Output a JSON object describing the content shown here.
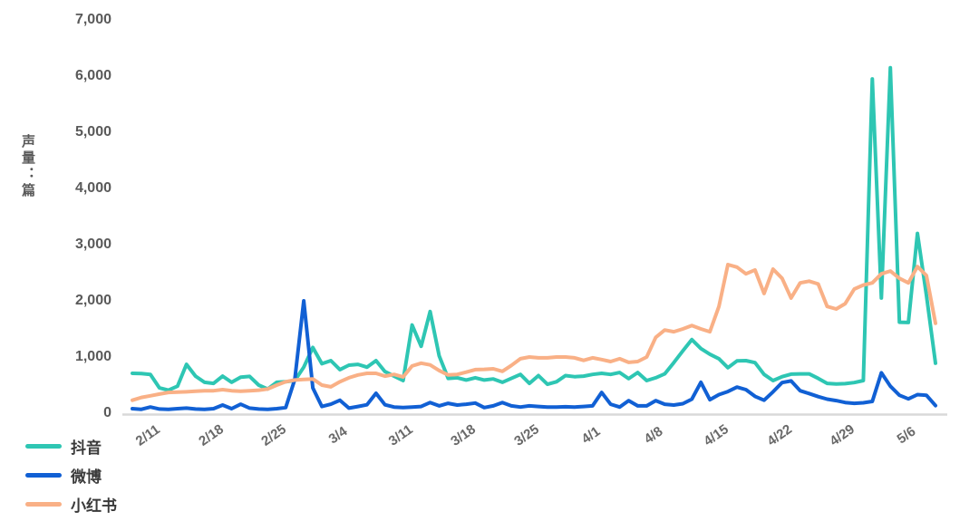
{
  "chart_data": {
    "type": "line",
    "title": "",
    "y_axis_title": "声量：篇",
    "xlabel": "",
    "ylabel": "声量：篇",
    "ylim": [
      0,
      7000
    ],
    "grid": false,
    "legend_position": "bottom-left",
    "axis_line_color": "#d9d9d9",
    "tick_label_color": "#595959",
    "legend_text_color": "#3a3a3a",
    "y_tick_labels": [
      "0",
      "1,000",
      "2,000",
      "3,000",
      "4,000",
      "5,000",
      "6,000",
      "7,000"
    ],
    "x_tick_labels": [
      "2/11",
      "2/18",
      "2/25",
      "3/4",
      "3/11",
      "3/18",
      "3/25",
      "4/1",
      "4/8",
      "4/15",
      "4/22",
      "4/29",
      "5/6"
    ],
    "x_tick_indices": [
      2,
      9,
      16,
      23,
      30,
      37,
      44,
      51,
      58,
      65,
      72,
      79,
      86
    ],
    "x": [
      "2/9",
      "2/10",
      "2/11",
      "2/12",
      "2/13",
      "2/14",
      "2/15",
      "2/16",
      "2/17",
      "2/18",
      "2/19",
      "2/20",
      "2/21",
      "2/22",
      "2/23",
      "2/24",
      "2/25",
      "2/26",
      "2/27",
      "2/28",
      "3/1",
      "3/2",
      "3/3",
      "3/4",
      "3/5",
      "3/6",
      "3/7",
      "3/8",
      "3/9",
      "3/10",
      "3/11",
      "3/12",
      "3/13",
      "3/14",
      "3/15",
      "3/16",
      "3/17",
      "3/18",
      "3/19",
      "3/20",
      "3/21",
      "3/22",
      "3/23",
      "3/24",
      "3/25",
      "3/26",
      "3/27",
      "3/28",
      "3/29",
      "3/30",
      "3/31",
      "4/1",
      "4/2",
      "4/3",
      "4/4",
      "4/5",
      "4/6",
      "4/7",
      "4/8",
      "4/9",
      "4/10",
      "4/11",
      "4/12",
      "4/13",
      "4/14",
      "4/15",
      "4/16",
      "4/17",
      "4/18",
      "4/19",
      "4/20",
      "4/21",
      "4/22",
      "4/23",
      "4/24",
      "4/25",
      "4/26",
      "4/27",
      "4/28",
      "4/29",
      "4/30",
      "5/1",
      "5/2",
      "5/3",
      "5/4",
      "5/5",
      "5/6",
      "5/7",
      "5/8",
      "5/9"
    ],
    "series": [
      {
        "key": "douyin",
        "name": "抖音",
        "color": "#2EC6B3",
        "values": [
          710,
          705,
          690,
          450,
          410,
          480,
          870,
          660,
          550,
          530,
          660,
          550,
          640,
          655,
          500,
          430,
          550,
          560,
          580,
          820,
          1170,
          880,
          935,
          775,
          855,
          870,
          820,
          935,
          740,
          660,
          580,
          1570,
          1190,
          1810,
          1020,
          620,
          630,
          590,
          630,
          590,
          610,
          550,
          620,
          690,
          530,
          670,
          515,
          560,
          670,
          650,
          660,
          690,
          710,
          690,
          725,
          615,
          725,
          580,
          630,
          700,
          900,
          1110,
          1310,
          1150,
          1050,
          970,
          810,
          930,
          935,
          900,
          690,
          580,
          650,
          695,
          700,
          700,
          620,
          530,
          520,
          525,
          545,
          580,
          5950,
          2050,
          6150,
          1620,
          1615,
          3200,
          2100,
          890
        ]
      },
      {
        "key": "weibo",
        "name": "微博",
        "color": "#1160D4",
        "values": [
          80,
          70,
          110,
          75,
          70,
          80,
          90,
          75,
          70,
          80,
          145,
          80,
          160,
          90,
          75,
          70,
          80,
          100,
          600,
          2000,
          450,
          120,
          160,
          230,
          90,
          120,
          150,
          355,
          150,
          110,
          100,
          110,
          120,
          190,
          130,
          175,
          145,
          160,
          180,
          100,
          130,
          190,
          130,
          110,
          130,
          120,
          110,
          110,
          115,
          110,
          120,
          130,
          370,
          160,
          110,
          225,
          130,
          130,
          225,
          160,
          145,
          170,
          250,
          550,
          240,
          330,
          385,
          465,
          420,
          300,
          230,
          380,
          545,
          575,
          400,
          350,
          295,
          250,
          225,
          190,
          175,
          185,
          210,
          720,
          480,
          320,
          255,
          330,
          320,
          135
        ]
      },
      {
        "key": "xiaohongshu",
        "name": "小红书",
        "color": "#F9B086",
        "values": [
          230,
          280,
          310,
          340,
          370,
          375,
          380,
          390,
          400,
          400,
          420,
          400,
          390,
          400,
          410,
          430,
          500,
          560,
          590,
          600,
          610,
          500,
          470,
          560,
          630,
          680,
          710,
          710,
          660,
          690,
          645,
          840,
          890,
          860,
          760,
          680,
          690,
          730,
          775,
          780,
          790,
          745,
          850,
          970,
          1000,
          985,
          985,
          1000,
          1000,
          985,
          940,
          985,
          955,
          920,
          970,
          905,
          920,
          1000,
          1350,
          1480,
          1450,
          1500,
          1560,
          1500,
          1450,
          1900,
          2645,
          2600,
          2480,
          2550,
          2130,
          2565,
          2400,
          2050,
          2320,
          2350,
          2300,
          1900,
          1855,
          1950,
          2210,
          2280,
          2320,
          2480,
          2530,
          2400,
          2320,
          2610,
          2450,
          1600
        ]
      }
    ]
  }
}
